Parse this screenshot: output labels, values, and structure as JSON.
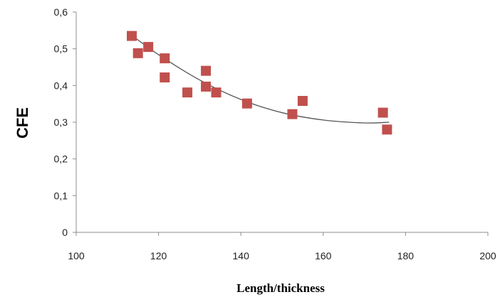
{
  "chart_data": {
    "type": "scatter",
    "xlabel": "Length/thickness",
    "ylabel": "CFE",
    "xlim": [
      100,
      200
    ],
    "ylim": [
      0,
      0.6
    ],
    "x_ticks": [
      100,
      120,
      140,
      160,
      180,
      200
    ],
    "x_tick_labels": [
      "100",
      "120",
      "140",
      "160",
      "180",
      "200"
    ],
    "y_ticks": [
      0,
      0.1,
      0.2,
      0.3,
      0.4,
      0.5,
      0.6
    ],
    "y_tick_labels": [
      "0",
      "0,1",
      "0,2",
      "0,3",
      "0,4",
      "0,5",
      "0,6"
    ],
    "grid": false,
    "marker_color": "#c0504d",
    "trendline_color": "#555555",
    "series": [
      {
        "points": [
          {
            "x": 113.5,
            "y": 0.535
          },
          {
            "x": 115.0,
            "y": 0.488
          },
          {
            "x": 117.5,
            "y": 0.505
          },
          {
            "x": 121.5,
            "y": 0.474
          },
          {
            "x": 121.5,
            "y": 0.422
          },
          {
            "x": 127.0,
            "y": 0.381
          },
          {
            "x": 131.5,
            "y": 0.44
          },
          {
            "x": 131.5,
            "y": 0.397
          },
          {
            "x": 134.0,
            "y": 0.381
          },
          {
            "x": 141.5,
            "y": 0.351
          },
          {
            "x": 152.5,
            "y": 0.322
          },
          {
            "x": 155.0,
            "y": 0.358
          },
          {
            "x": 174.5,
            "y": 0.326
          },
          {
            "x": 175.5,
            "y": 0.28
          }
        ]
      }
    ],
    "trendline": {
      "type": "polynomial",
      "x_range": [
        112.5,
        176
      ],
      "points": [
        {
          "x": 112.5,
          "y": 0.545
        },
        {
          "x": 120.0,
          "y": 0.484
        },
        {
          "x": 130.0,
          "y": 0.415
        },
        {
          "x": 140.0,
          "y": 0.362
        },
        {
          "x": 150.0,
          "y": 0.326
        },
        {
          "x": 160.0,
          "y": 0.306
        },
        {
          "x": 170.0,
          "y": 0.298
        },
        {
          "x": 176.0,
          "y": 0.3
        }
      ]
    }
  }
}
